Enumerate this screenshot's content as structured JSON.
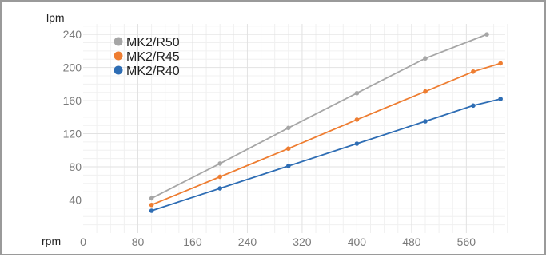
{
  "chart_data": {
    "type": "line",
    "xlabel": "rpm",
    "ylabel": "lpm",
    "xlim": [
      0,
      620
    ],
    "ylim": [
      0,
      255
    ],
    "x_ticks": [
      "0",
      "80",
      "160",
      "240",
      "320",
      "400",
      "480",
      "560"
    ],
    "y_ticks": [
      "40",
      "80",
      "120",
      "160",
      "200",
      "240"
    ],
    "grid": "on",
    "legend": "top-left",
    "series": [
      {
        "name": "MK2/R50",
        "color": "#a6a6a6",
        "points": [
          [
            100,
            42
          ],
          [
            200,
            84
          ],
          [
            300,
            127
          ],
          [
            400,
            169
          ],
          [
            500,
            211
          ],
          [
            590,
            240
          ]
        ]
      },
      {
        "name": "MK2/R45",
        "color": "#ee7d31",
        "points": [
          [
            100,
            34
          ],
          [
            200,
            68
          ],
          [
            300,
            102
          ],
          [
            400,
            137
          ],
          [
            500,
            171
          ],
          [
            570,
            195
          ],
          [
            610,
            205
          ]
        ]
      },
      {
        "name": "MK2/R40",
        "color": "#2e6db4",
        "points": [
          [
            100,
            27
          ],
          [
            200,
            54
          ],
          [
            300,
            81
          ],
          [
            400,
            108
          ],
          [
            500,
            135
          ],
          [
            570,
            154
          ],
          [
            610,
            162
          ]
        ]
      }
    ]
  }
}
